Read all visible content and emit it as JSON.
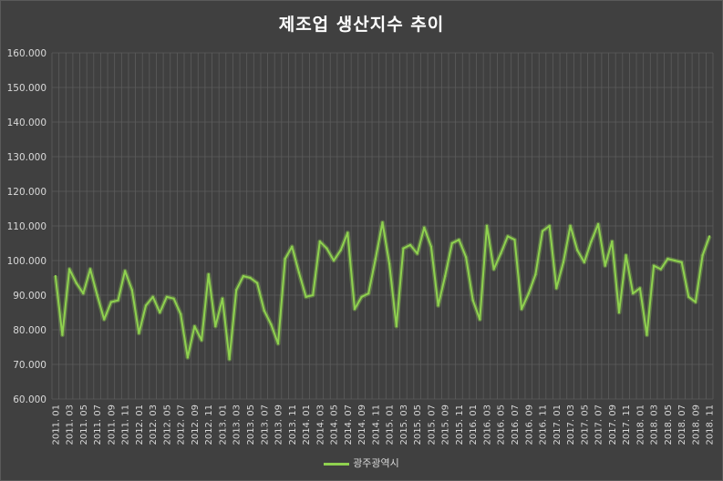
{
  "chart_data": {
    "type": "line",
    "title": "제조업 생산지수 추이",
    "xlabel": "",
    "ylabel": "",
    "ylim": [
      60,
      160
    ],
    "y_ticks": [
      "60.000",
      "70.000",
      "80.000",
      "90.000",
      "100.000",
      "110.000",
      "120.000",
      "130.000",
      "140.000",
      "150.000",
      "160.000"
    ],
    "x_tick_labels": [
      "2011. 01",
      "2011. 03",
      "2011. 05",
      "2011. 07",
      "2011. 09",
      "2011. 11",
      "2012. 01",
      "2012. 03",
      "2012. 05",
      "2012. 07",
      "2012. 09",
      "2012. 11",
      "2013. 01",
      "2013. 03",
      "2013. 05",
      "2013. 07",
      "2013. 09",
      "2013. 11",
      "2014. 01",
      "2014. 03",
      "2014. 05",
      "2014. 07",
      "2014. 09",
      "2014. 11",
      "2015. 01",
      "2015. 03",
      "2015. 05",
      "2015. 07",
      "2015. 09",
      "2015. 11",
      "2016. 01",
      "2016. 03",
      "2016. 05",
      "2016. 07",
      "2016. 09",
      "2016. 11",
      "2017. 01",
      "2017. 03",
      "2017. 05",
      "2017. 07",
      "2017. 09",
      "2017. 11",
      "2018. 01",
      "2018. 03",
      "2018. 05",
      "2018. 07",
      "2018. 09",
      "2018. 11"
    ],
    "grid": true,
    "legend_position": "bottom",
    "line_color": "#8fd14f",
    "series": [
      {
        "name": "광주광역시",
        "values": [
          95.5,
          78.5,
          97.5,
          93.5,
          90.5,
          97.5,
          90.0,
          83.0,
          88.0,
          88.5,
          97.0,
          91.5,
          79.0,
          87.0,
          89.5,
          85.0,
          89.5,
          89.0,
          84.5,
          72.0,
          81.0,
          77.0,
          96.0,
          81.0,
          89.0,
          71.5,
          91.5,
          95.5,
          95.0,
          93.5,
          85.5,
          81.5,
          76.0,
          100.5,
          104.0,
          96.5,
          89.5,
          90.0,
          105.5,
          103.5,
          100.0,
          103.0,
          108.0,
          86.0,
          89.5,
          90.5,
          100.5,
          111.0,
          99.0,
          81.0,
          103.5,
          104.5,
          102.0,
          109.5,
          104.0,
          87.0,
          95.5,
          105.0,
          106.0,
          101.0,
          88.5,
          83.0,
          110.0,
          97.5,
          102.0,
          107.0,
          106.0,
          86.0,
          90.5,
          96.0,
          108.5,
          110.0,
          92.0,
          99.5,
          110.0,
          103.0,
          99.5,
          105.5,
          110.5,
          98.5,
          105.5,
          85.0,
          101.5,
          90.5,
          92.0,
          78.5,
          98.5,
          97.5,
          100.5,
          100.0,
          99.5,
          89.5,
          88.0,
          101.5,
          107.0
        ]
      }
    ]
  }
}
